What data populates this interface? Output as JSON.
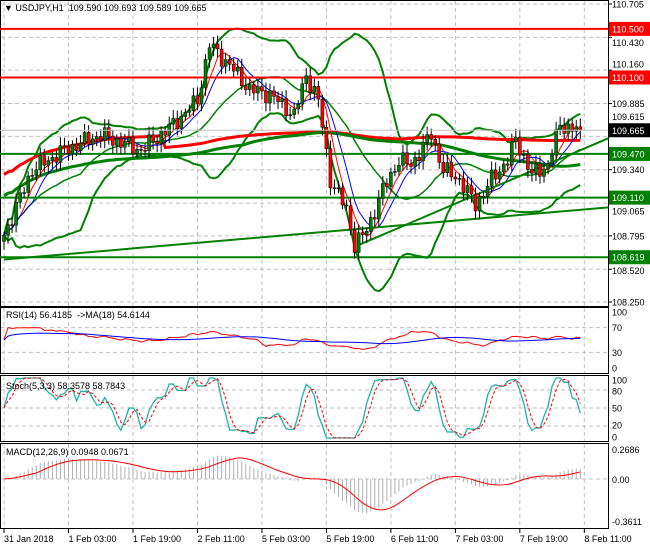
{
  "header": {
    "symbol": "USDJPY,H1",
    "open": "109.590",
    "high": "109.693",
    "low": "109.589",
    "close": "109.665"
  },
  "price_axis": [
    "110.705",
    "110.430",
    "110.160",
    "109.885",
    "109.615",
    "109.340",
    "109.065",
    "108.795",
    "108.520",
    "108.250"
  ],
  "levels": [
    {
      "label": "110.500",
      "value": 110.5,
      "color": "#ff0000"
    },
    {
      "label": "110.100",
      "value": 110.1,
      "color": "#ff0000"
    },
    {
      "label": "109.470",
      "value": 109.47,
      "color": "#008000"
    },
    {
      "label": "109.110",
      "value": 109.11,
      "color": "#008000"
    },
    {
      "label": "108.619",
      "value": 108.619,
      "color": "#008000"
    }
  ],
  "current_price": {
    "label": "109.665",
    "value": 109.665
  },
  "time_axis": [
    "31 Jan 2018",
    "1 Feb 03:00",
    "1 Feb 19:00",
    "2 Feb 11:00",
    "5 Feb 03:00",
    "5 Feb 19:00",
    "6 Feb 11:00",
    "7 Feb 03:00",
    "7 Feb 19:00",
    "8 Feb 11:00"
  ],
  "rsi": {
    "title": "RSI(14) 56.4185  ->MA(18) 54.6144",
    "axis": [
      "100",
      "70",
      "30",
      "0"
    ]
  },
  "stoch": {
    "title": "Stoch(5,3,3) 58.3578 58.7843",
    "axis": [
      "100",
      "80",
      "50",
      "20",
      "0"
    ]
  },
  "macd": {
    "title": "MACD(12,26,9) 0.0948 0.0671",
    "axis": [
      "0.2686",
      "0.00",
      "-0.3611"
    ]
  },
  "chart_data": {
    "type": "candlestick",
    "price_range": [
      108.25,
      110.705
    ],
    "control_points": [
      [
        0,
        108.8
      ],
      [
        7,
        109.34
      ],
      [
        15,
        109.5
      ],
      [
        24,
        109.63
      ],
      [
        34,
        109.5
      ],
      [
        42,
        109.71
      ],
      [
        48,
        109.91
      ],
      [
        51,
        110.37
      ],
      [
        56,
        110.2
      ],
      [
        61,
        110.0
      ],
      [
        66,
        109.96
      ],
      [
        72,
        109.79
      ],
      [
        75,
        110.12
      ],
      [
        78,
        109.91
      ],
      [
        81,
        109.26
      ],
      [
        85,
        109.01
      ],
      [
        87,
        108.72
      ],
      [
        90,
        108.84
      ],
      [
        94,
        109.17
      ],
      [
        98,
        109.42
      ],
      [
        101,
        109.38
      ],
      [
        106,
        109.63
      ],
      [
        109,
        109.34
      ],
      [
        113,
        109.26
      ],
      [
        117,
        109.05
      ],
      [
        121,
        109.26
      ],
      [
        125,
        109.42
      ],
      [
        127,
        109.59
      ],
      [
        131,
        109.3
      ],
      [
        135,
        109.38
      ],
      [
        138,
        109.71
      ],
      [
        142,
        109.67
      ],
      [
        143,
        109.665
      ]
    ],
    "trendlines": [
      [
        [
          88,
          108.72
        ],
        [
          150,
          109.6
        ]
      ],
      [
        [
          0,
          108.6
        ],
        [
          150,
          109.03
        ]
      ]
    ]
  }
}
